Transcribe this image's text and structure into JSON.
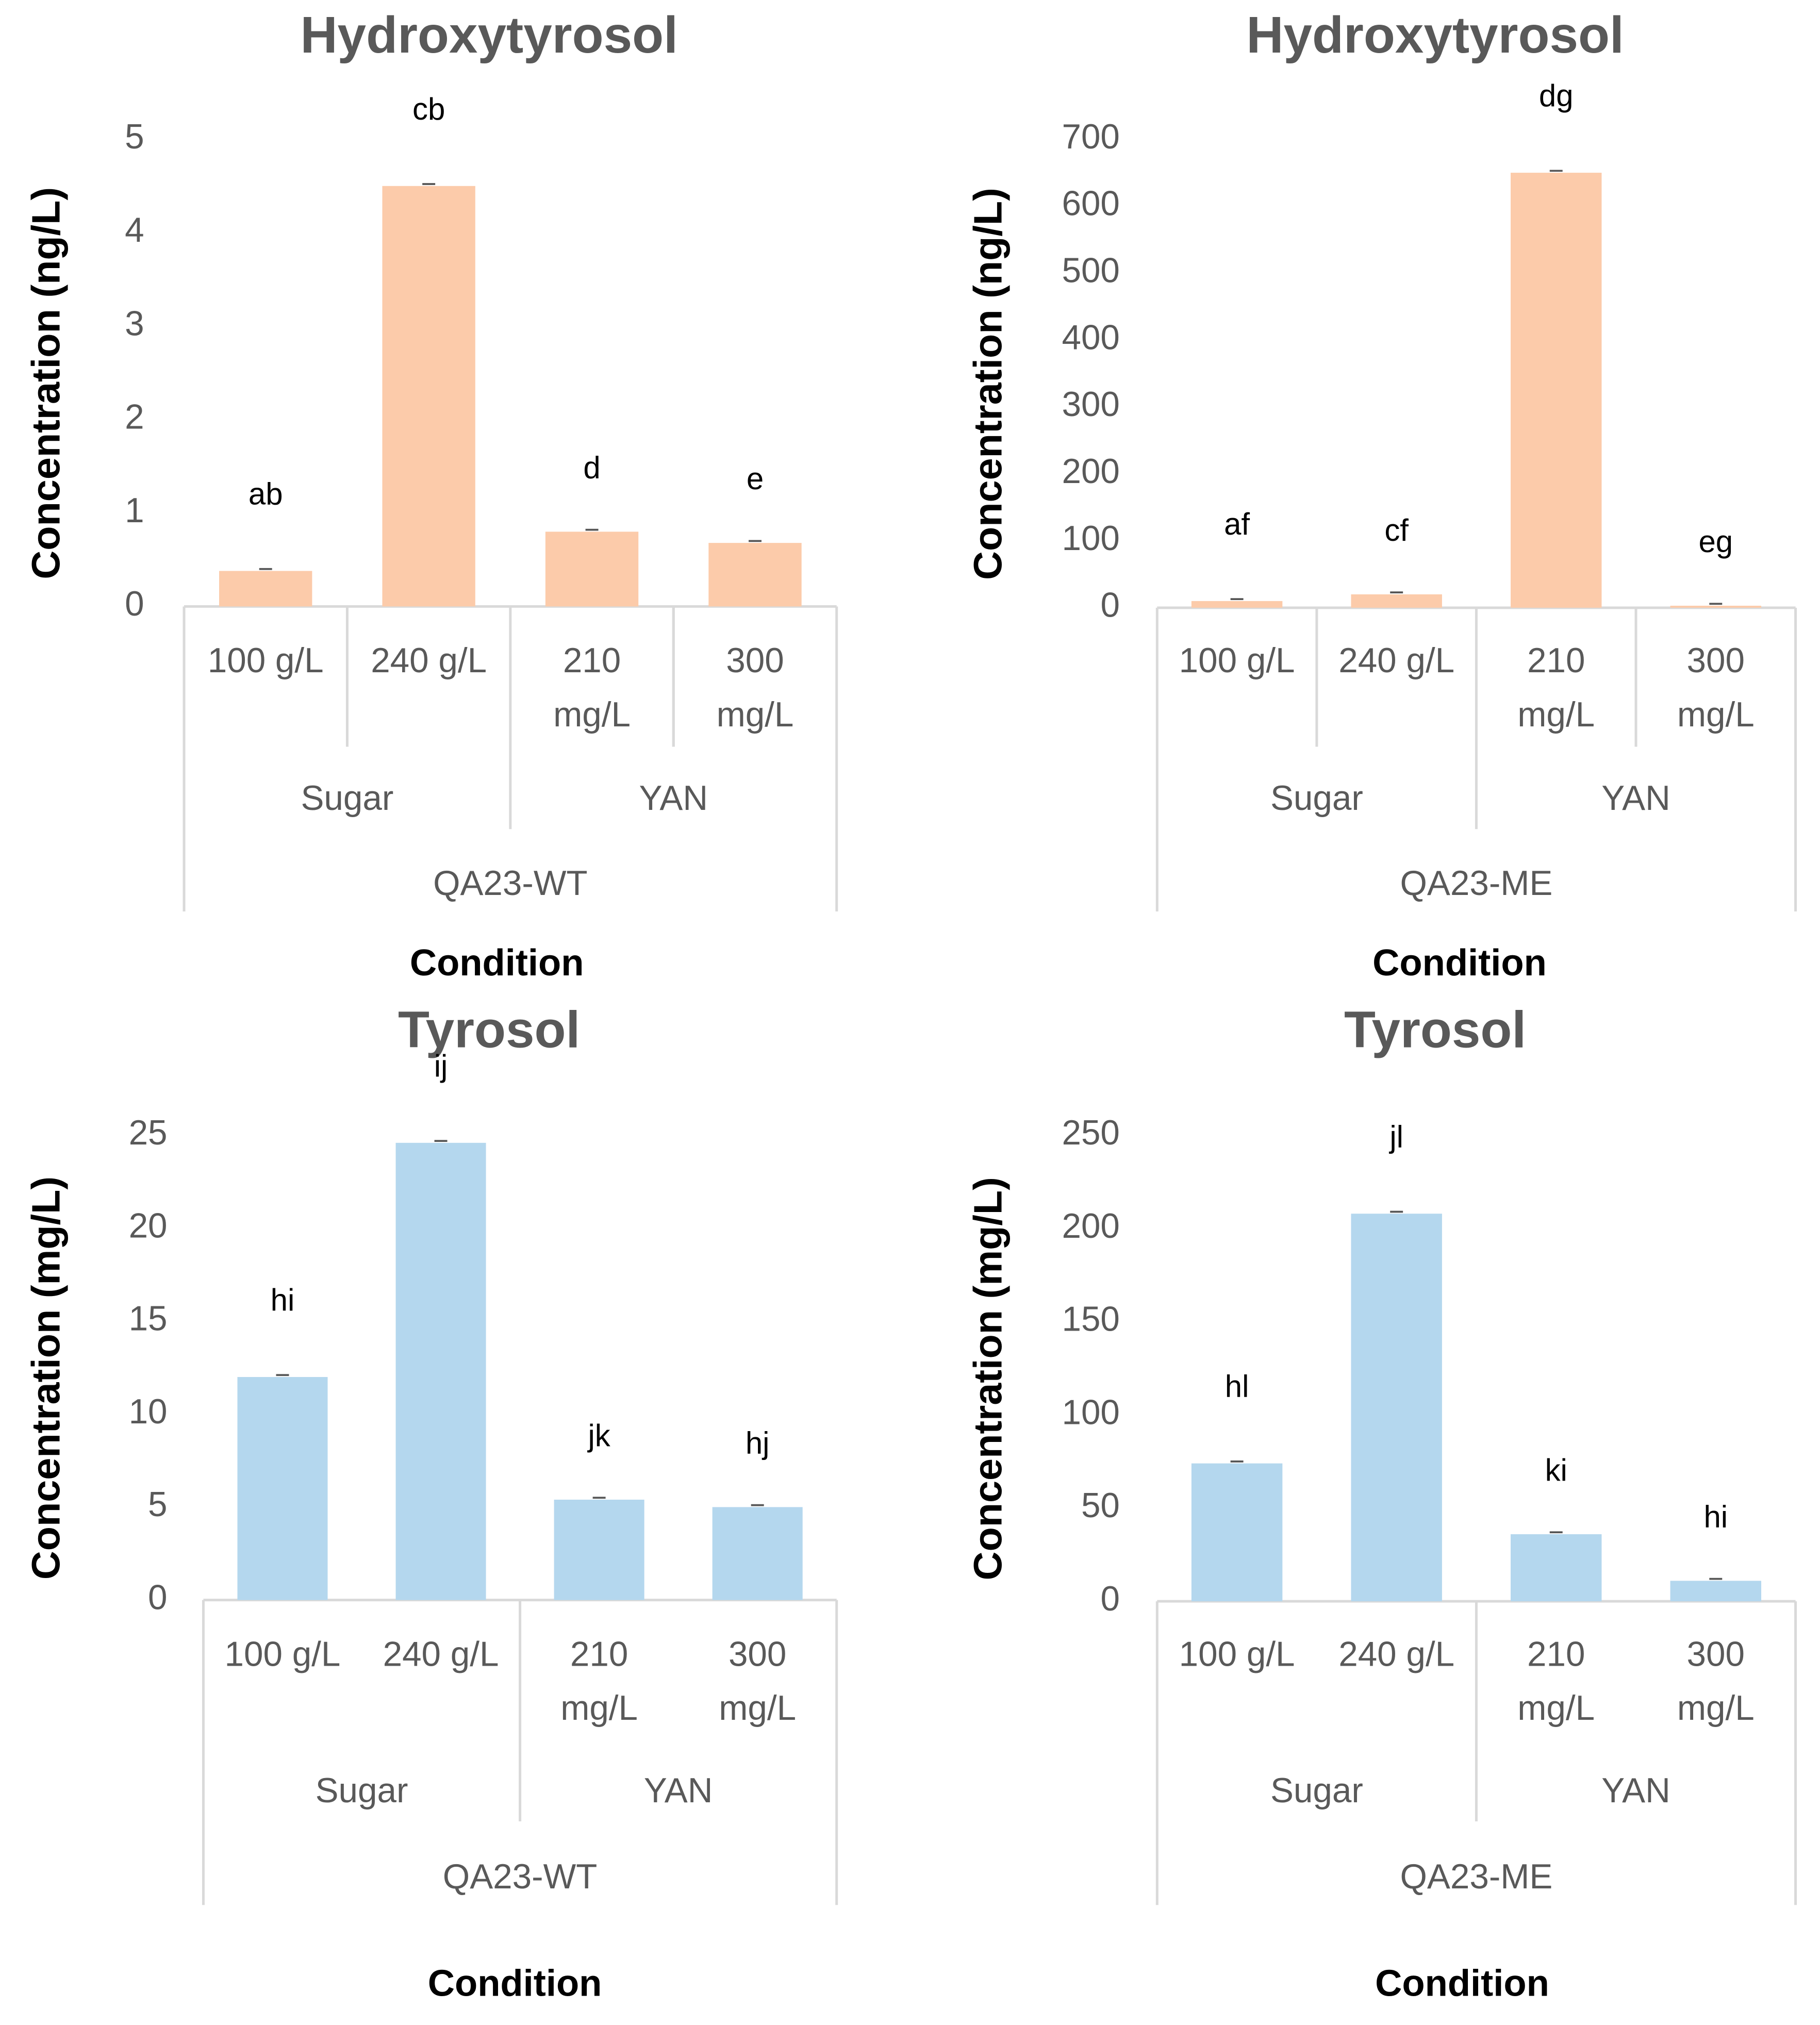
{
  "chart_data": [
    {
      "type": "bar",
      "title": "Hydroxytyrosol",
      "ylabel": "Concentration (ng/L)",
      "xlabel": "Condition",
      "ylim": [
        0,
        5
      ],
      "yticks": [
        "0",
        "1",
        "2",
        "3",
        "4",
        "5"
      ],
      "categories": [
        [
          "100 g/L"
        ],
        [
          "240 g/L"
        ],
        [
          "210",
          "mg/L"
        ],
        [
          "300",
          "mg/L"
        ]
      ],
      "groups": [
        {
          "label": "Sugar",
          "span": 2
        },
        {
          "label": "YAN",
          "span": 2
        }
      ],
      "strain": "QA23-WT",
      "values": [
        0.38,
        4.5,
        0.8,
        0.68
      ],
      "letters": [
        "ab",
        "cb",
        "d",
        "e"
      ],
      "color": "#FCCBAA"
    },
    {
      "type": "bar",
      "title": "Hydroxytyrosol",
      "ylabel": "Concentration (ng/L)",
      "xlabel": "Condition",
      "ylim": [
        0,
        700
      ],
      "yticks": [
        "0",
        "100",
        "200",
        "300",
        "400",
        "500",
        "600",
        "700"
      ],
      "categories": [
        [
          "100 g/L"
        ],
        [
          "240 g/L"
        ],
        [
          "210",
          "mg/L"
        ],
        [
          "300",
          "mg/L"
        ]
      ],
      "groups": [
        {
          "label": "Sugar",
          "span": 2
        },
        {
          "label": "YAN",
          "span": 2
        }
      ],
      "strain": "QA23-ME",
      "values": [
        10,
        20,
        650,
        3
      ],
      "letters": [
        "af",
        "cf",
        "dg",
        "eg"
      ],
      "color": "#FCCBAA"
    },
    {
      "type": "bar",
      "title": "Tyrosol",
      "ylabel": "Concentration (mg/L)",
      "xlabel": "Condition",
      "ylim": [
        0,
        25
      ],
      "yticks": [
        "0",
        "5",
        "10",
        "15",
        "20",
        "25"
      ],
      "categories": [
        [
          "100 g/L"
        ],
        [
          "240 g/L"
        ],
        [
          "210",
          "mg/L"
        ],
        [
          "300",
          "mg/L"
        ]
      ],
      "groups": [
        {
          "label": "Sugar",
          "span": 2
        },
        {
          "label": "YAN",
          "span": 2
        }
      ],
      "strain": "QA23-WT",
      "values": [
        12,
        24.6,
        5.4,
        5.0
      ],
      "letters": [
        "hi",
        "ij",
        "jk",
        "hj"
      ],
      "color": "#B4D7EE"
    },
    {
      "type": "bar",
      "title": "Tyrosol",
      "ylabel": "Concentration (mg/L)",
      "xlabel": "Condition",
      "ylim": [
        0,
        250
      ],
      "yticks": [
        "0",
        "50",
        "100",
        "150",
        "200",
        "250"
      ],
      "categories": [
        [
          "100 g/L"
        ],
        [
          "240 g/L"
        ],
        [
          "210",
          "mg/L"
        ],
        [
          "300",
          "mg/L"
        ]
      ],
      "groups": [
        {
          "label": "Sugar",
          "span": 2
        },
        {
          "label": "YAN",
          "span": 2
        }
      ],
      "strain": "QA23-ME",
      "values": [
        74,
        208,
        36,
        11
      ],
      "letters": [
        "hl",
        "jl",
        "ki",
        "hi"
      ],
      "color": "#B4D7EE"
    }
  ]
}
